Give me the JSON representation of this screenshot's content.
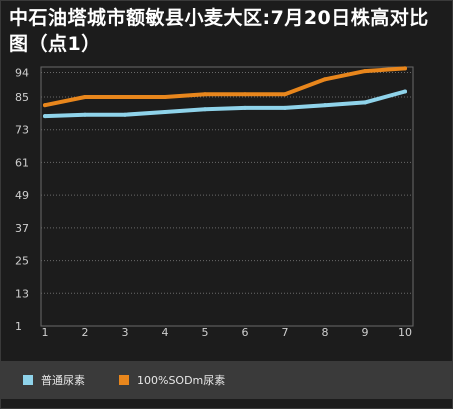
{
  "colors": {
    "series1": "#8fd3ea",
    "series2": "#e8861c",
    "grid": "#6a6a6a",
    "text": "#cfcfcf"
  },
  "chart_data": {
    "type": "line",
    "title": "中石油塔城市额敏县小麦大区:7月20日株高对比图（点1）",
    "x": [
      1,
      2,
      3,
      4,
      5,
      6,
      7,
      8,
      9,
      10
    ],
    "yticks": [
      1,
      13,
      25,
      37,
      49,
      61,
      73,
      85,
      94
    ],
    "ylim": [
      1,
      96
    ],
    "xlabel": "",
    "ylabel": "",
    "grid": true,
    "legend": "bottom",
    "series": [
      {
        "name": "普通尿素",
        "values": [
          78,
          78.5,
          78.5,
          79.5,
          80.5,
          81,
          81,
          82,
          83,
          87
        ]
      },
      {
        "name": "100%SODm尿素",
        "values": [
          82,
          85,
          85,
          85,
          86,
          86,
          86,
          91.5,
          94.5,
          95.5
        ]
      }
    ]
  }
}
